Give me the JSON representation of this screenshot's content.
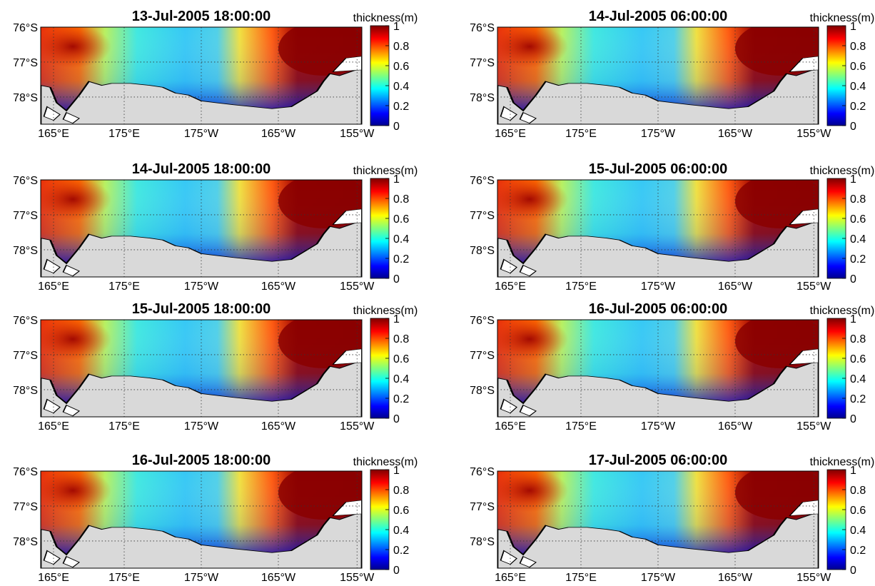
{
  "figure": {
    "colorbar": {
      "label": "thickness(m)",
      "min": 0,
      "max": 1,
      "ticks": [
        "0",
        "0.2",
        "0.4",
        "0.6",
        "0.8",
        "1"
      ],
      "colormap": "jet"
    },
    "lat_ticks": [
      "76°S",
      "77°S",
      "78°S"
    ],
    "lon_ticks": [
      "165°E",
      "175°E",
      "175°W",
      "165°W",
      "155°W"
    ],
    "grid": "dotted",
    "land_color": "#d9d9d9",
    "panels": [
      {
        "title": "13-Jul-2005 18:00:00"
      },
      {
        "title": "14-Jul-2005 06:00:00"
      },
      {
        "title": "14-Jul-2005 18:00:00"
      },
      {
        "title": "15-Jul-2005 06:00:00"
      },
      {
        "title": "15-Jul-2005 18:00:00"
      },
      {
        "title": "16-Jul-2005 06:00:00"
      },
      {
        "title": "16-Jul-2005 18:00:00"
      },
      {
        "title": "17-Jul-2005 06:00:00"
      }
    ]
  }
}
